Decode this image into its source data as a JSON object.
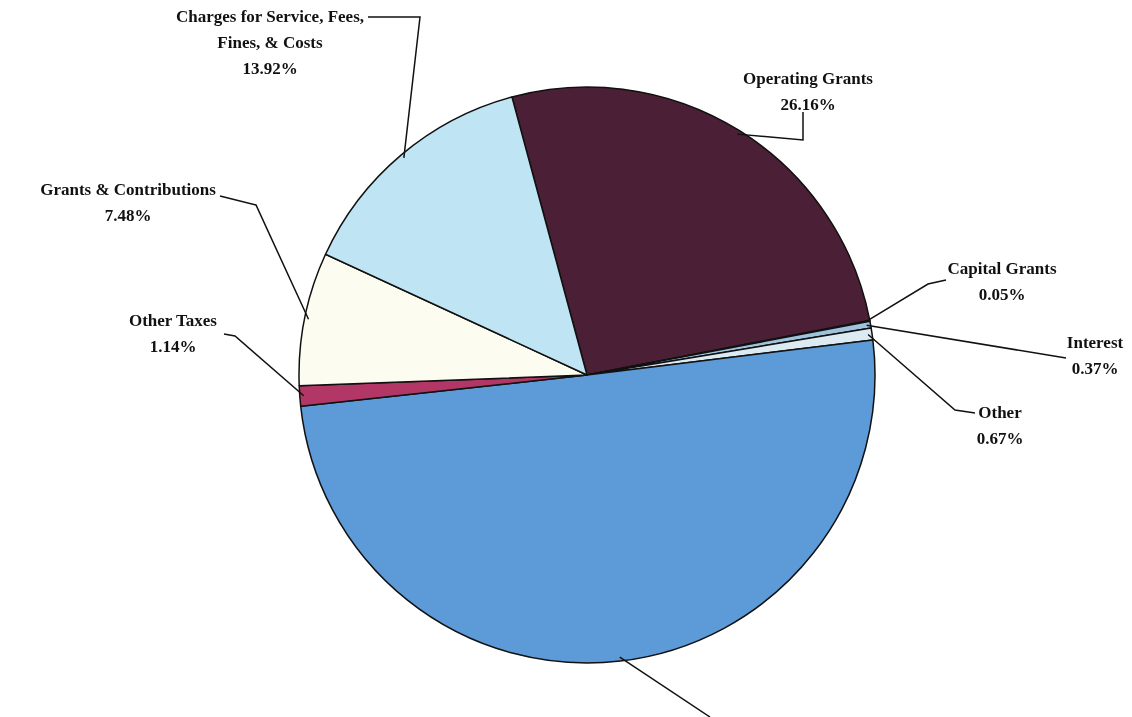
{
  "chart_data": {
    "type": "pie",
    "categories": [
      "Operating Grants",
      "Capital Grants",
      "Interest",
      "Other",
      null,
      "Other Taxes",
      "Grants & Contributions",
      "Charges for Service, Fees, Fines, & Costs"
    ],
    "values": [
      26.16,
      0.05,
      0.37,
      0.67,
      50.21,
      1.14,
      7.48,
      13.92
    ],
    "value_labels": [
      "26.16%",
      "0.05%",
      "0.37%",
      "0.67%",
      null,
      "1.14%",
      "7.48%",
      "13.92%"
    ],
    "colors": [
      "#4b1f35",
      "#1d5a9c",
      "#9fc3dc",
      "#dcebf2",
      "#5d9ad8",
      "#b33766",
      "#fcfcf0",
      "#bfe4f4"
    ]
  }
}
